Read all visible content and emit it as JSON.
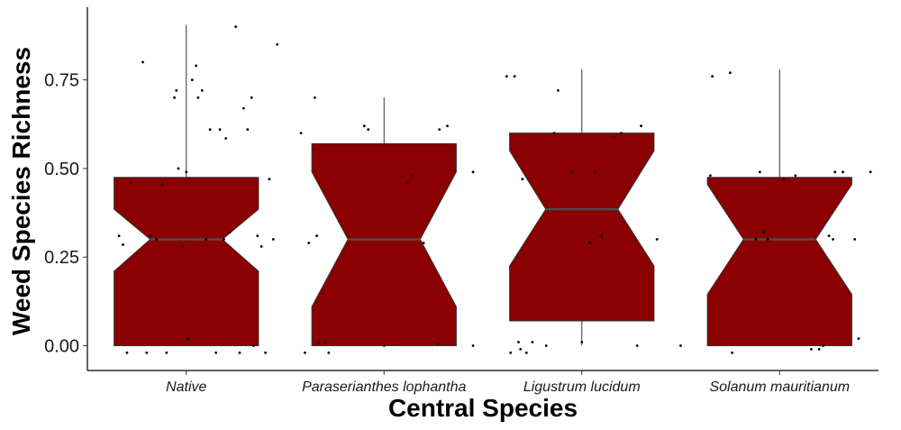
{
  "chart_data": {
    "type": "boxplot",
    "notched": true,
    "title": "",
    "xlabel": "Central Species",
    "ylabel": "Weed Species Richness",
    "ylim": [
      -0.07,
      0.955
    ],
    "yticks": [
      {
        "value": 0.0,
        "label": "0.00"
      },
      {
        "value": 0.25,
        "label": "0.25"
      },
      {
        "value": 0.5,
        "label": "0.50"
      },
      {
        "value": 0.75,
        "label": "0.75"
      }
    ],
    "grid": false,
    "legend": "none",
    "fill_color": "#8b0000",
    "median_color": "#4d4d4d",
    "categories": [
      "Native",
      "Paraserianthes lophantha",
      "Ligustrum lucidum",
      "Solanum mauritianum"
    ],
    "boxes": [
      {
        "category": "Native",
        "whisker_low": 0.0,
        "q1": 0.0,
        "notch_low": 0.21,
        "median": 0.3,
        "notch_high": 0.385,
        "q3": 0.475,
        "whisker_high": 0.905
      },
      {
        "category": "Paraserianthes lophantha",
        "whisker_low": 0.0,
        "q1": 0.0,
        "notch_low": 0.11,
        "median": 0.3,
        "notch_high": 0.49,
        "q3": 0.57,
        "whisker_high": 0.7
      },
      {
        "category": "Ligustrum lucidum",
        "whisker_low": 0.0,
        "q1": 0.07,
        "notch_low": 0.225,
        "median": 0.385,
        "notch_high": 0.55,
        "q3": 0.6,
        "whisker_high": 0.78
      },
      {
        "category": "Solanum mauritianum",
        "whisker_low": 0.0,
        "q1": 0.0,
        "notch_low": 0.145,
        "median": 0.3,
        "notch_high": 0.455,
        "q3": 0.475,
        "whisker_high": 0.78
      }
    ],
    "jitter_points": [
      {
        "category": "Native",
        "x_offset": -0.34,
        "y": 0.31
      },
      {
        "category": "Native",
        "x_offset": -0.32,
        "y": 0.285
      },
      {
        "category": "Native",
        "x_offset": -0.3,
        "y": -0.02
      },
      {
        "category": "Native",
        "x_offset": -0.28,
        "y": 0.46
      },
      {
        "category": "Native",
        "x_offset": -0.22,
        "y": 0.8
      },
      {
        "category": "Native",
        "x_offset": -0.2,
        "y": -0.02
      },
      {
        "category": "Native",
        "x_offset": -0.18,
        "y": 0.31
      },
      {
        "category": "Native",
        "x_offset": -0.15,
        "y": 0.3
      },
      {
        "category": "Native",
        "x_offset": -0.12,
        "y": 0.455
      },
      {
        "category": "Native",
        "x_offset": -0.1,
        "y": -0.02
      },
      {
        "category": "Native",
        "x_offset": -0.06,
        "y": 0.7
      },
      {
        "category": "Native",
        "x_offset": -0.05,
        "y": 0.72
      },
      {
        "category": "Native",
        "x_offset": -0.04,
        "y": 0.5
      },
      {
        "category": "Native",
        "x_offset": -0.02,
        "y": 0.28
      },
      {
        "category": "Native",
        "x_offset": 0.0,
        "y": 0.49
      },
      {
        "category": "Native",
        "x_offset": 0.01,
        "y": 0.02
      },
      {
        "category": "Native",
        "x_offset": 0.03,
        "y": 0.75
      },
      {
        "category": "Native",
        "x_offset": 0.05,
        "y": 0.79
      },
      {
        "category": "Native",
        "x_offset": 0.06,
        "y": 0.7
      },
      {
        "category": "Native",
        "x_offset": 0.08,
        "y": 0.72
      },
      {
        "category": "Native",
        "x_offset": 0.1,
        "y": 0.3
      },
      {
        "category": "Native",
        "x_offset": 0.12,
        "y": 0.61
      },
      {
        "category": "Native",
        "x_offset": 0.15,
        "y": -0.02
      },
      {
        "category": "Native",
        "x_offset": 0.17,
        "y": 0.61
      },
      {
        "category": "Native",
        "x_offset": 0.19,
        "y": 0.3
      },
      {
        "category": "Native",
        "x_offset": 0.2,
        "y": 0.585
      },
      {
        "category": "Native",
        "x_offset": 0.22,
        "y": 0.32
      },
      {
        "category": "Native",
        "x_offset": 0.25,
        "y": 0.9
      },
      {
        "category": "Native",
        "x_offset": 0.27,
        "y": -0.02
      },
      {
        "category": "Native",
        "x_offset": 0.29,
        "y": 0.67
      },
      {
        "category": "Native",
        "x_offset": 0.31,
        "y": 0.61
      },
      {
        "category": "Native",
        "x_offset": 0.33,
        "y": 0.7
      },
      {
        "category": "Native",
        "x_offset": 0.34,
        "y": 0.0
      },
      {
        "category": "Native",
        "x_offset": 0.36,
        "y": 0.31
      },
      {
        "category": "Native",
        "x_offset": 0.38,
        "y": 0.28
      },
      {
        "category": "Native",
        "x_offset": 0.4,
        "y": -0.02
      },
      {
        "category": "Native",
        "x_offset": 0.42,
        "y": 0.47
      },
      {
        "category": "Native",
        "x_offset": 0.44,
        "y": 0.3
      },
      {
        "category": "Native",
        "x_offset": 0.46,
        "y": 0.85
      },
      {
        "category": "Paraserianthes lophantha",
        "x_offset": -0.42,
        "y": 0.6
      },
      {
        "category": "Paraserianthes lophantha",
        "x_offset": -0.4,
        "y": -0.02
      },
      {
        "category": "Paraserianthes lophantha",
        "x_offset": -0.38,
        "y": 0.29
      },
      {
        "category": "Paraserianthes lophantha",
        "x_offset": -0.35,
        "y": 0.7
      },
      {
        "category": "Paraserianthes lophantha",
        "x_offset": -0.34,
        "y": 0.31
      },
      {
        "category": "Paraserianthes lophantha",
        "x_offset": -0.33,
        "y": 0.01
      },
      {
        "category": "Paraserianthes lophantha",
        "x_offset": -0.3,
        "y": 0.01
      },
      {
        "category": "Paraserianthes lophantha",
        "x_offset": -0.28,
        "y": -0.02
      },
      {
        "category": "Paraserianthes lophantha",
        "x_offset": -0.1,
        "y": 0.62
      },
      {
        "category": "Paraserianthes lophantha",
        "x_offset": -0.08,
        "y": 0.61
      },
      {
        "category": "Paraserianthes lophantha",
        "x_offset": 0.0,
        "y": 0.0
      },
      {
        "category": "Paraserianthes lophantha",
        "x_offset": 0.12,
        "y": 0.46
      },
      {
        "category": "Paraserianthes lophantha",
        "x_offset": 0.14,
        "y": 0.48
      },
      {
        "category": "Paraserianthes lophantha",
        "x_offset": 0.2,
        "y": 0.29
      },
      {
        "category": "Paraserianthes lophantha",
        "x_offset": 0.28,
        "y": 0.61
      },
      {
        "category": "Paraserianthes lophantha",
        "x_offset": 0.32,
        "y": 0.62
      },
      {
        "category": "Paraserianthes lophantha",
        "x_offset": 0.27,
        "y": 0.005
      },
      {
        "category": "Paraserianthes lophantha",
        "x_offset": 0.45,
        "y": 0.49
      },
      {
        "category": "Paraserianthes lophantha",
        "x_offset": 0.45,
        "y": 0.0
      },
      {
        "category": "Ligustrum lucidum",
        "x_offset": -0.38,
        "y": 0.76
      },
      {
        "category": "Ligustrum lucidum",
        "x_offset": -0.36,
        "y": -0.02
      },
      {
        "category": "Ligustrum lucidum",
        "x_offset": -0.34,
        "y": 0.76
      },
      {
        "category": "Ligustrum lucidum",
        "x_offset": -0.32,
        "y": 0.01
      },
      {
        "category": "Ligustrum lucidum",
        "x_offset": -0.31,
        "y": -0.01
      },
      {
        "category": "Ligustrum lucidum",
        "x_offset": -0.3,
        "y": 0.47
      },
      {
        "category": "Ligustrum lucidum",
        "x_offset": -0.28,
        "y": -0.02
      },
      {
        "category": "Ligustrum lucidum",
        "x_offset": -0.25,
        "y": 0.01
      },
      {
        "category": "Ligustrum lucidum",
        "x_offset": -0.18,
        "y": 0.0
      },
      {
        "category": "Ligustrum lucidum",
        "x_offset": -0.14,
        "y": 0.6
      },
      {
        "category": "Ligustrum lucidum",
        "x_offset": -0.12,
        "y": 0.72
      },
      {
        "category": "Ligustrum lucidum",
        "x_offset": -0.05,
        "y": 0.49
      },
      {
        "category": "Ligustrum lucidum",
        "x_offset": 0.0,
        "y": 0.01
      },
      {
        "category": "Ligustrum lucidum",
        "x_offset": 0.04,
        "y": 0.29
      },
      {
        "category": "Ligustrum lucidum",
        "x_offset": 0.07,
        "y": 0.49
      },
      {
        "category": "Ligustrum lucidum",
        "x_offset": 0.1,
        "y": 0.31
      },
      {
        "category": "Ligustrum lucidum",
        "x_offset": 0.16,
        "y": 0.59
      },
      {
        "category": "Ligustrum lucidum",
        "x_offset": 0.2,
        "y": 0.6
      },
      {
        "category": "Ligustrum lucidum",
        "x_offset": 0.3,
        "y": 0.62
      },
      {
        "category": "Ligustrum lucidum",
        "x_offset": 0.28,
        "y": 0.0
      },
      {
        "category": "Ligustrum lucidum",
        "x_offset": 0.38,
        "y": 0.3
      },
      {
        "category": "Solanum mauritianum",
        "x_offset": -0.5,
        "y": 0.0
      },
      {
        "category": "Solanum mauritianum",
        "x_offset": -0.35,
        "y": 0.48
      },
      {
        "category": "Solanum mauritianum",
        "x_offset": -0.34,
        "y": 0.76
      },
      {
        "category": "Solanum mauritianum",
        "x_offset": -0.25,
        "y": 0.77
      },
      {
        "category": "Solanum mauritianum",
        "x_offset": -0.24,
        "y": -0.02
      },
      {
        "category": "Solanum mauritianum",
        "x_offset": -0.1,
        "y": 0.49
      },
      {
        "category": "Solanum mauritianum",
        "x_offset": -0.12,
        "y": 0.3
      },
      {
        "category": "Solanum mauritianum",
        "x_offset": -0.08,
        "y": 0.32
      },
      {
        "category": "Solanum mauritianum",
        "x_offset": -0.06,
        "y": 0.3
      },
      {
        "category": "Solanum mauritianum",
        "x_offset": 0.02,
        "y": 0.47
      },
      {
        "category": "Solanum mauritianum",
        "x_offset": 0.08,
        "y": 0.48
      },
      {
        "category": "Solanum mauritianum",
        "x_offset": 0.16,
        "y": -0.01
      },
      {
        "category": "Solanum mauritianum",
        "x_offset": 0.2,
        "y": -0.01
      },
      {
        "category": "Solanum mauritianum",
        "x_offset": 0.22,
        "y": 0.0
      },
      {
        "category": "Solanum mauritianum",
        "x_offset": 0.25,
        "y": 0.31
      },
      {
        "category": "Solanum mauritianum",
        "x_offset": 0.27,
        "y": 0.3
      },
      {
        "category": "Solanum mauritianum",
        "x_offset": 0.28,
        "y": 0.49
      },
      {
        "category": "Solanum mauritianum",
        "x_offset": 0.32,
        "y": 0.49
      },
      {
        "category": "Solanum mauritianum",
        "x_offset": 0.38,
        "y": 0.3
      },
      {
        "category": "Solanum mauritianum",
        "x_offset": 0.4,
        "y": 0.02
      },
      {
        "category": "Solanum mauritianum",
        "x_offset": 0.46,
        "y": 0.49
      }
    ]
  }
}
